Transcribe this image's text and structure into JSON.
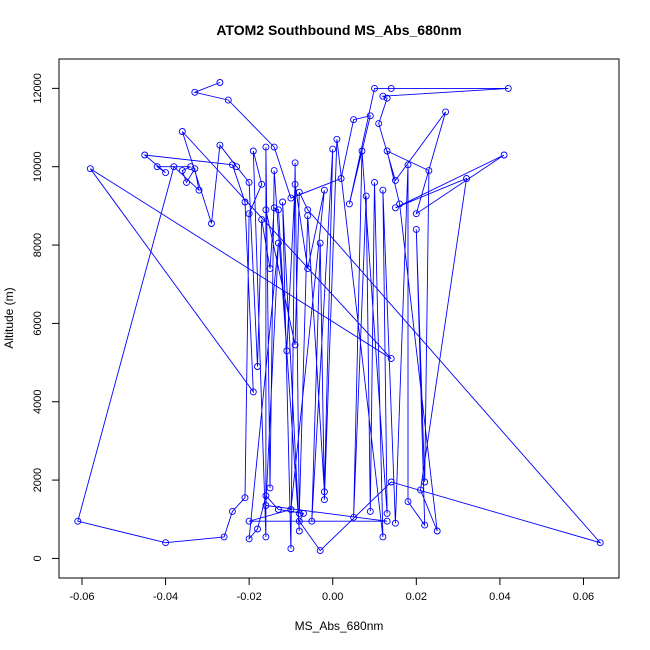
{
  "chart_data": {
    "type": "line",
    "title": "ATOM2 Southbound MS_Abs_680nm",
    "xlabel": "MS_Abs_680nm",
    "ylabel": "Altitude (m)",
    "xlim": [
      -0.0655,
      0.0685
    ],
    "ylim": [
      -500,
      12750
    ],
    "x_ticks": [
      -0.06,
      -0.04,
      -0.02,
      0.0,
      0.02,
      0.04,
      0.06
    ],
    "x_tick_labels": [
      "-0.06",
      "-0.04",
      "-0.02",
      "0.00",
      "0.02",
      "0.04",
      "0.06"
    ],
    "y_ticks": [
      0,
      2000,
      4000,
      6000,
      8000,
      10000,
      12000
    ],
    "y_tick_labels": [
      "0",
      "2000",
      "4000",
      "6000",
      "8000",
      "10000",
      "12000"
    ],
    "grid": false,
    "color": "#0000ff",
    "marker": "open-circle",
    "points": [
      {
        "x": -0.027,
        "y": 12150
      },
      {
        "x": -0.033,
        "y": 11900
      },
      {
        "x": -0.025,
        "y": 11700
      },
      {
        "x": -0.014,
        "y": 10500
      },
      {
        "x": -0.01,
        "y": 9200
      },
      {
        "x": 0.002,
        "y": 9700
      },
      {
        "x": 0.005,
        "y": 11200
      },
      {
        "x": 0.009,
        "y": 11300
      },
      {
        "x": 0.004,
        "y": 9050
      },
      {
        "x": 0.01,
        "y": 12000
      },
      {
        "x": 0.014,
        "y": 12000
      },
      {
        "x": 0.042,
        "y": 12000
      },
      {
        "x": 0.012,
        "y": 11800
      },
      {
        "x": 0.013,
        "y": 11750
      },
      {
        "x": 0.011,
        "y": 11100
      },
      {
        "x": 0.015,
        "y": 9650
      },
      {
        "x": 0.027,
        "y": 11400
      },
      {
        "x": 0.02,
        "y": 8800
      },
      {
        "x": 0.041,
        "y": 10300
      },
      {
        "x": 0.015,
        "y": 8950
      },
      {
        "x": 0.032,
        "y": 9700
      },
      {
        "x": 0.021,
        "y": 1750
      },
      {
        "x": 0.025,
        "y": 700
      },
      {
        "x": 0.016,
        "y": 9050
      },
      {
        "x": 0.013,
        "y": 10400
      },
      {
        "x": 0.023,
        "y": 9900
      },
      {
        "x": 0.022,
        "y": 1950
      },
      {
        "x": 0.02,
        "y": 8400
      },
      {
        "x": 0.022,
        "y": 850
      },
      {
        "x": 0.018,
        "y": 1450
      },
      {
        "x": 0.018,
        "y": 10050
      },
      {
        "x": 0.015,
        "y": 900
      },
      {
        "x": 0.012,
        "y": 9400
      },
      {
        "x": 0.013,
        "y": 1150
      },
      {
        "x": 0.007,
        "y": 10400
      },
      {
        "x": 0.005,
        "y": 1050
      },
      {
        "x": 0.008,
        "y": 9250
      },
      {
        "x": 0.009,
        "y": 1200
      },
      {
        "x": 0.01,
        "y": 9600
      },
      {
        "x": 0.012,
        "y": 550
      },
      {
        "x": 0.001,
        "y": 10700
      },
      {
        "x": -0.002,
        "y": 1500
      },
      {
        "x": -0.003,
        "y": 8050
      },
      {
        "x": -0.005,
        "y": 950
      },
      {
        "x": 0.0,
        "y": 10450
      },
      {
        "x": -0.002,
        "y": 1700
      },
      {
        "x": -0.006,
        "y": 8750
      },
      {
        "x": -0.008,
        "y": 1150
      },
      {
        "x": -0.009,
        "y": 10100
      },
      {
        "x": -0.01,
        "y": 250
      },
      {
        "x": -0.012,
        "y": 9100
      },
      {
        "x": -0.008,
        "y": 700
      },
      {
        "x": -0.014,
        "y": 9900
      },
      {
        "x": -0.015,
        "y": 1800
      },
      {
        "x": -0.016,
        "y": 10500
      },
      {
        "x": -0.016,
        "y": 550
      },
      {
        "x": -0.019,
        "y": 10400
      },
      {
        "x": -0.017,
        "y": 9550
      },
      {
        "x": -0.02,
        "y": 8800
      },
      {
        "x": -0.021,
        "y": 1550
      },
      {
        "x": -0.024,
        "y": 1200
      },
      {
        "x": -0.026,
        "y": 550
      },
      {
        "x": -0.04,
        "y": 400
      },
      {
        "x": -0.061,
        "y": 950
      },
      {
        "x": -0.038,
        "y": 10000
      },
      {
        "x": -0.032,
        "y": 9400
      },
      {
        "x": -0.033,
        "y": 9950
      },
      {
        "x": -0.035,
        "y": 9600
      },
      {
        "x": -0.036,
        "y": 9900
      },
      {
        "x": -0.034,
        "y": 10000
      },
      {
        "x": -0.042,
        "y": 10000
      },
      {
        "x": -0.04,
        "y": 9850
      },
      {
        "x": -0.045,
        "y": 10300
      },
      {
        "x": -0.024,
        "y": 10050
      },
      {
        "x": -0.021,
        "y": 9100
      },
      {
        "x": -0.019,
        "y": 4250
      },
      {
        "x": -0.058,
        "y": 9950
      },
      {
        "x": 0.014,
        "y": 5100
      },
      {
        "x": -0.036,
        "y": 10900
      },
      {
        "x": -0.029,
        "y": 8550
      },
      {
        "x": -0.027,
        "y": 10550
      },
      {
        "x": -0.023,
        "y": 10000
      },
      {
        "x": -0.02,
        "y": 9600
      },
      {
        "x": -0.018,
        "y": 4900
      },
      {
        "x": -0.017,
        "y": 8650
      },
      {
        "x": -0.015,
        "y": 7400
      },
      {
        "x": -0.014,
        "y": 8950
      },
      {
        "x": -0.013,
        "y": 8900
      },
      {
        "x": -0.011,
        "y": 5300
      },
      {
        "x": -0.009,
        "y": 9550
      },
      {
        "x": -0.006,
        "y": 7400
      },
      {
        "x": -0.002,
        "y": 9400
      },
      {
        "x": -0.01,
        "y": 1250
      },
      {
        "x": -0.02,
        "y": 950
      },
      {
        "x": 0.013,
        "y": 950
      },
      {
        "x": -0.016,
        "y": 1350
      },
      {
        "x": -0.013,
        "y": 8050
      },
      {
        "x": -0.02,
        "y": 500
      },
      {
        "x": -0.018,
        "y": 750
      },
      {
        "x": -0.016,
        "y": 1600
      },
      {
        "x": -0.013,
        "y": 1250
      },
      {
        "x": -0.007,
        "y": 1150
      },
      {
        "x": -0.008,
        "y": 950
      },
      {
        "x": -0.003,
        "y": 200
      },
      {
        "x": 0.014,
        "y": 1950
      },
      {
        "x": 0.064,
        "y": 400
      },
      {
        "x": -0.006,
        "y": 8900
      },
      {
        "x": -0.008,
        "y": 9350
      },
      {
        "x": -0.009,
        "y": 5450
      },
      {
        "x": -0.016,
        "y": 8900
      }
    ]
  }
}
